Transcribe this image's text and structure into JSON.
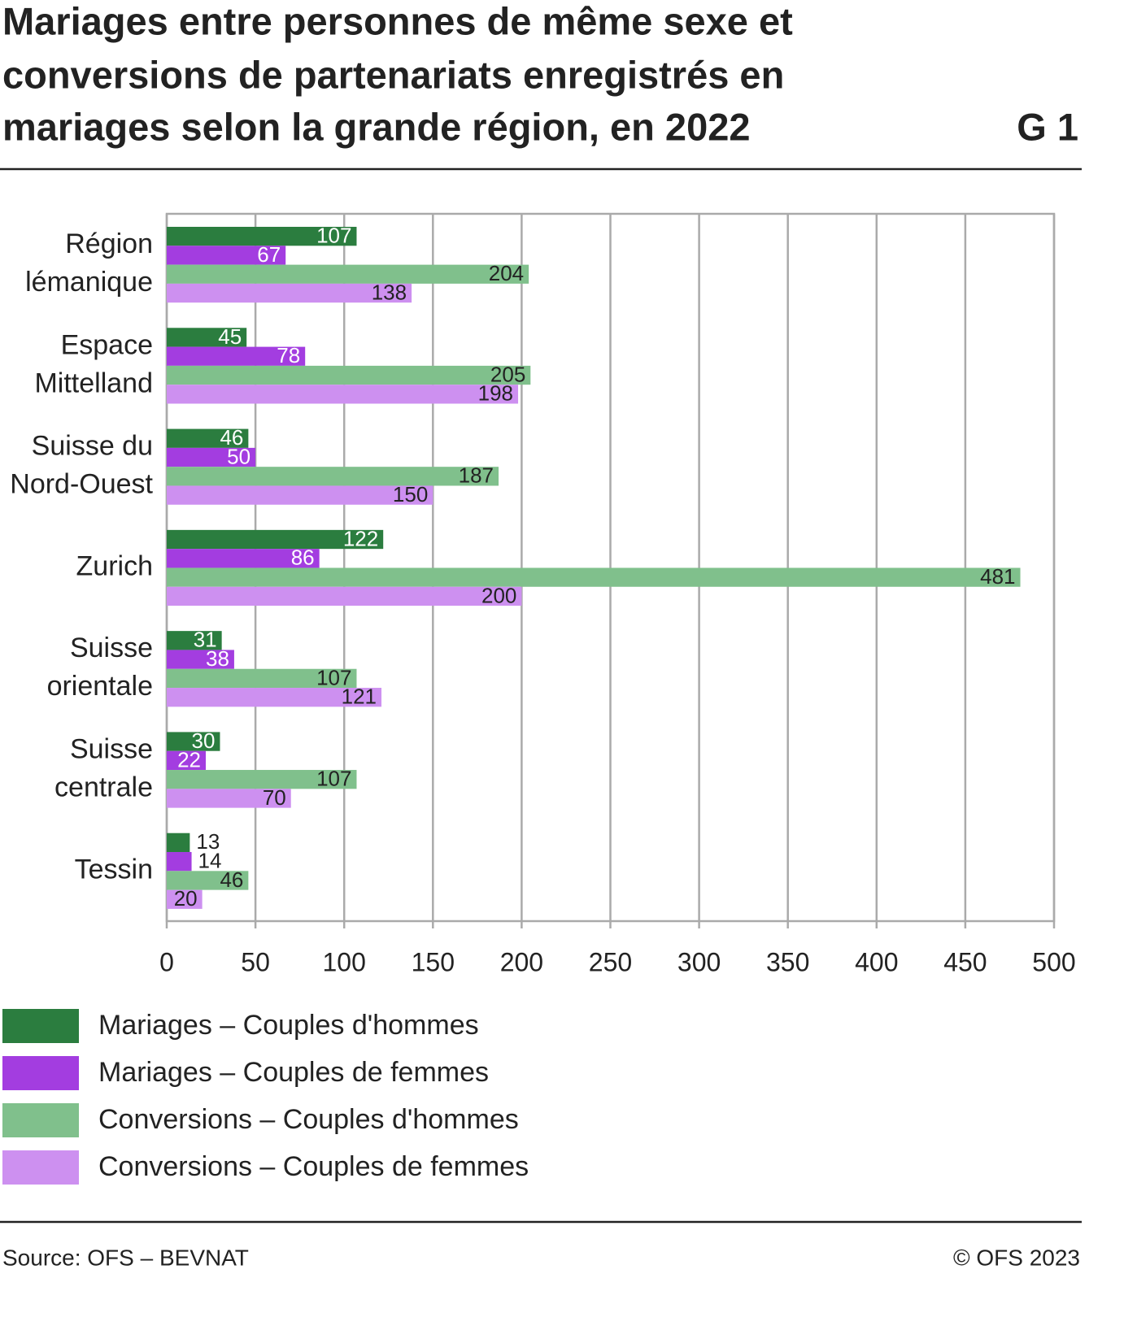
{
  "chart_data": {
    "type": "bar",
    "orientation": "horizontal",
    "title": [
      "Mariages entre personnes de même sexe et",
      "conversions de partenariats enregistrés en",
      "mariages selon la grande région, en 2022"
    ],
    "figure_label": "G 1",
    "categories": [
      [
        "Région",
        "lémanique"
      ],
      [
        "Espace",
        "Mittelland"
      ],
      [
        "Suisse du",
        "Nord-Ouest"
      ],
      [
        "Zurich"
      ],
      [
        "Suisse",
        "orientale"
      ],
      [
        "Suisse",
        "centrale"
      ],
      [
        "Tessin"
      ]
    ],
    "series": [
      {
        "name": "Mariages – Couples d'hommes",
        "color": "#2b7d3f",
        "values": [
          107,
          45,
          46,
          122,
          31,
          30,
          13
        ]
      },
      {
        "name": "Mariages – Couples de femmes",
        "color": "#a33de0",
        "values": [
          67,
          78,
          50,
          86,
          38,
          22,
          14
        ]
      },
      {
        "name": "Conversions – Couples d'hommes",
        "color": "#80c08c",
        "values": [
          204,
          205,
          187,
          481,
          107,
          107,
          46
        ]
      },
      {
        "name": "Conversions – Couples de femmes",
        "color": "#cd90f0",
        "values": [
          138,
          198,
          150,
          200,
          121,
          70,
          20
        ]
      }
    ],
    "xlim": [
      0,
      500
    ],
    "xticks": [
      0,
      50,
      100,
      150,
      200,
      250,
      300,
      350,
      400,
      450,
      500
    ],
    "grid": true,
    "source": "Source: OFS – BEVNAT",
    "copyright": "© OFS 2023"
  }
}
